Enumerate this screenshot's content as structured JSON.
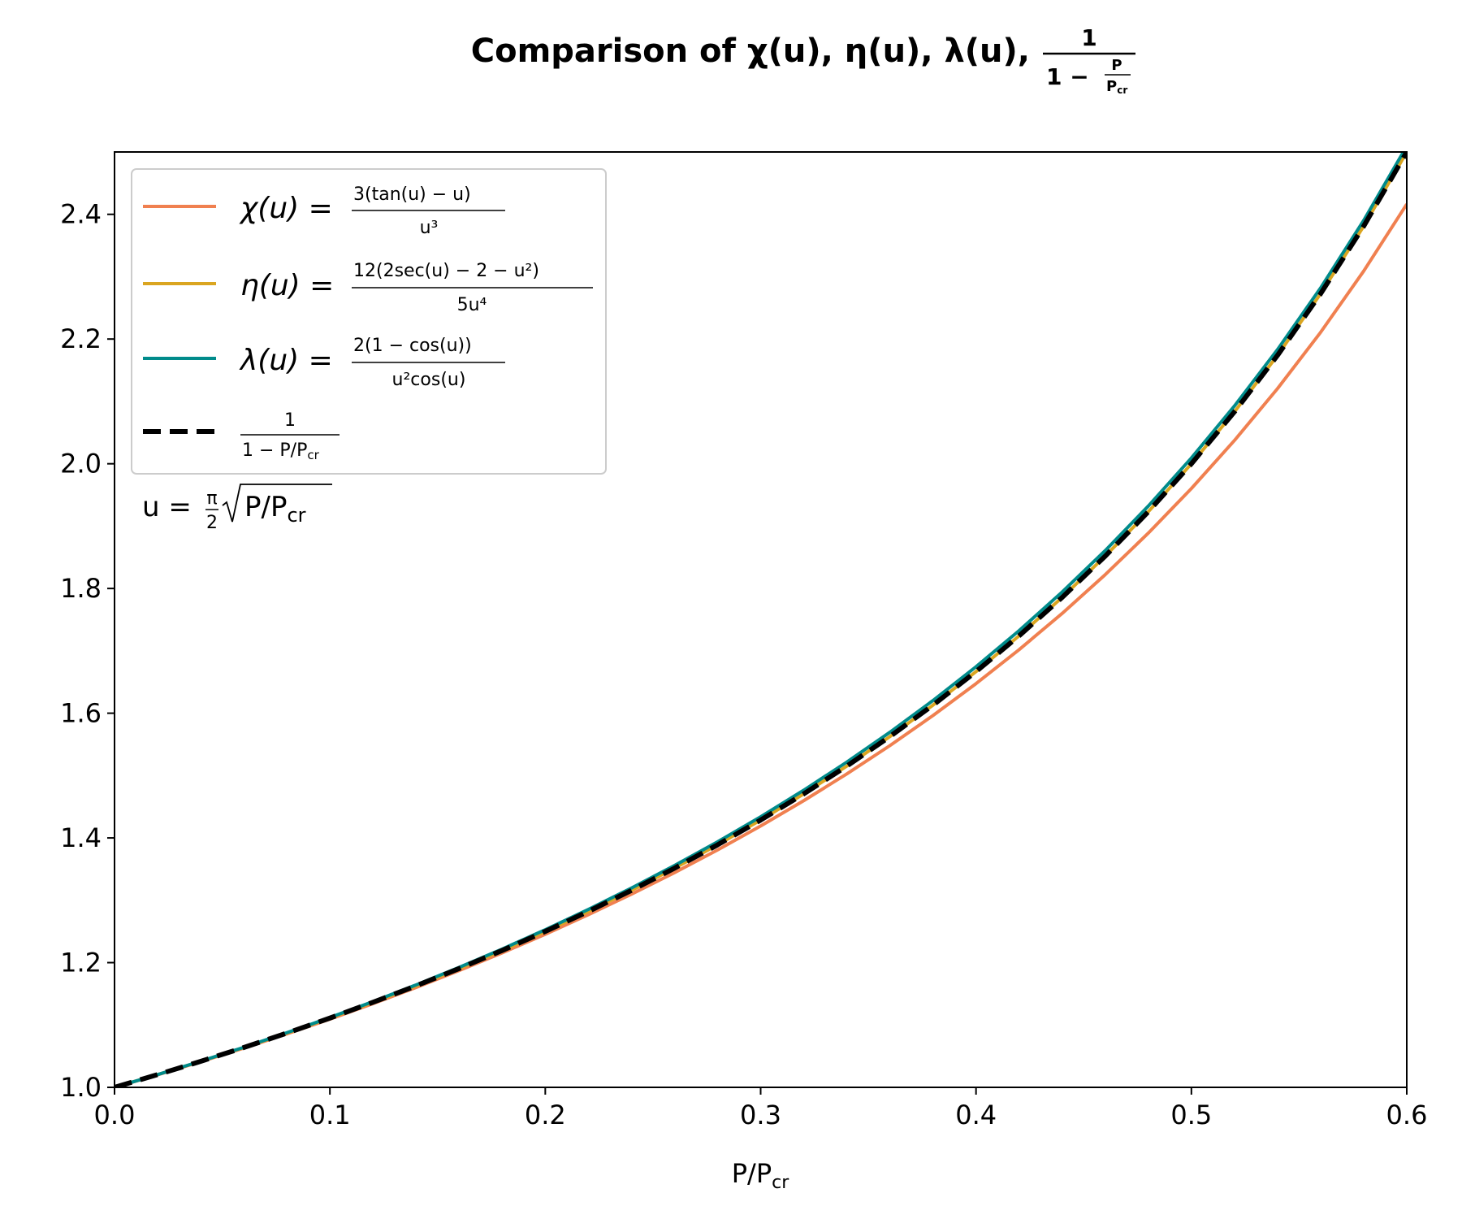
{
  "chart_data": {
    "type": "line",
    "title": {
      "prefix": "Comparison of χ(u), η(u), λ(u), ",
      "frac_num": "1",
      "frac_den_prefix": "1 − ",
      "frac_inner_num": "P",
      "frac_inner_den": "P",
      "frac_inner_den_sub": "cr"
    },
    "xlabel": {
      "main": "P/P",
      "sub": "cr"
    },
    "ylabel": "",
    "xlim": [
      0.0,
      0.6
    ],
    "ylim": [
      1.0,
      2.5
    ],
    "x_ticks": [
      "0.0",
      "0.1",
      "0.2",
      "0.3",
      "0.4",
      "0.5",
      "0.6"
    ],
    "x_tick_values": [
      0.0,
      0.1,
      0.2,
      0.3,
      0.4,
      0.5,
      0.6
    ],
    "y_ticks": [
      "1.0",
      "1.2",
      "1.4",
      "1.6",
      "1.8",
      "2.0",
      "2.2",
      "2.4"
    ],
    "y_tick_values": [
      1.0,
      1.2,
      1.4,
      1.6,
      1.8,
      2.0,
      2.2,
      2.4
    ],
    "grid": false,
    "legend_position": "upper-left",
    "annotation": {
      "lhs": "u = ",
      "frac_num": "π",
      "frac_den": "2",
      "radicand": "P/P",
      "radicand_sub": "cr"
    },
    "x": [
      0.0,
      0.02,
      0.04,
      0.06,
      0.08,
      0.1,
      0.12,
      0.14,
      0.16,
      0.18,
      0.2,
      0.22,
      0.24,
      0.26,
      0.28,
      0.3,
      0.32,
      0.34,
      0.36,
      0.38,
      0.4,
      0.42,
      0.44,
      0.46,
      0.48,
      0.5,
      0.52,
      0.54,
      0.56,
      0.58,
      0.6
    ],
    "series": [
      {
        "key": "chi",
        "name": "χ(u) = 3(tan(u) − u) / u³",
        "legend": {
          "lhs": "χ(u) = ",
          "num": "3(tan(u) − u)",
          "den": "u³"
        },
        "color": "#f08050",
        "dash": "solid",
        "values": [
          1.0,
          1.0201,
          1.0411,
          1.0629,
          1.0857,
          1.1094,
          1.1342,
          1.1601,
          1.1873,
          1.2157,
          1.2455,
          1.2768,
          1.3097,
          1.3443,
          1.3807,
          1.4191,
          1.4597,
          1.5026,
          1.548,
          1.5962,
          1.6474,
          1.7019,
          1.76,
          1.8222,
          1.8888,
          1.9603,
          2.0374,
          2.1206,
          2.2108,
          2.309,
          2.4163
        ]
      },
      {
        "key": "eta",
        "name": "η(u) = 12(2sec(u) − 2 − u²) / 5u⁴",
        "legend": {
          "lhs": "η(u) = ",
          "num": "12(2sec(u) − 2 − u²)",
          "den": "5u⁴"
        },
        "color": "#daa520",
        "dash": "solid",
        "values": [
          1.0,
          1.0204,
          1.0417,
          1.0638,
          1.087,
          1.1111,
          1.1364,
          1.1628,
          1.1905,
          1.2195,
          1.25,
          1.2821,
          1.3158,
          1.3514,
          1.3889,
          1.4286,
          1.4706,
          1.5152,
          1.5625,
          1.6129,
          1.6667,
          1.7241,
          1.7857,
          1.8519,
          1.9231,
          2.0,
          2.0833,
          2.1739,
          2.2727,
          2.381,
          2.5
        ]
      },
      {
        "key": "lambda",
        "name": "λ(u) = 2(1 − cos(u)) / u²cos(u)",
        "legend": {
          "lhs": "λ(u) = ",
          "num": "2(1 − cos(u))",
          "den": "u²cos(u)"
        },
        "color": "#008b8b",
        "dash": "solid",
        "values": [
          1.0,
          1.0205,
          1.0419,
          1.0642,
          1.0876,
          1.112,
          1.1375,
          1.1643,
          1.1924,
          1.2218,
          1.2528,
          1.2853,
          1.3196,
          1.3557,
          1.3937,
          1.4339,
          1.4765,
          1.5216,
          1.5694,
          1.6203,
          1.6745,
          1.7324,
          1.7944,
          1.8608,
          1.9322,
          2.0093,
          2.0927,
          2.1832,
          2.282,
          2.3902,
          2.5094
        ]
      },
      {
        "key": "ref",
        "name": "1 / (1 − P/Pcr)",
        "legend": {
          "lhs": "",
          "num": "1",
          "den": "1 − P/P",
          "den_sub": "cr"
        },
        "color": "#000000",
        "dash": "dashed",
        "values": [
          1.0,
          1.0204,
          1.0417,
          1.0638,
          1.087,
          1.1111,
          1.1364,
          1.1628,
          1.1905,
          1.2195,
          1.25,
          1.2821,
          1.3158,
          1.3514,
          1.3889,
          1.4286,
          1.4706,
          1.5152,
          1.5625,
          1.6129,
          1.6667,
          1.7241,
          1.7857,
          1.8519,
          1.9231,
          2.0,
          2.0833,
          2.1739,
          2.2727,
          2.381,
          2.5
        ]
      }
    ]
  }
}
